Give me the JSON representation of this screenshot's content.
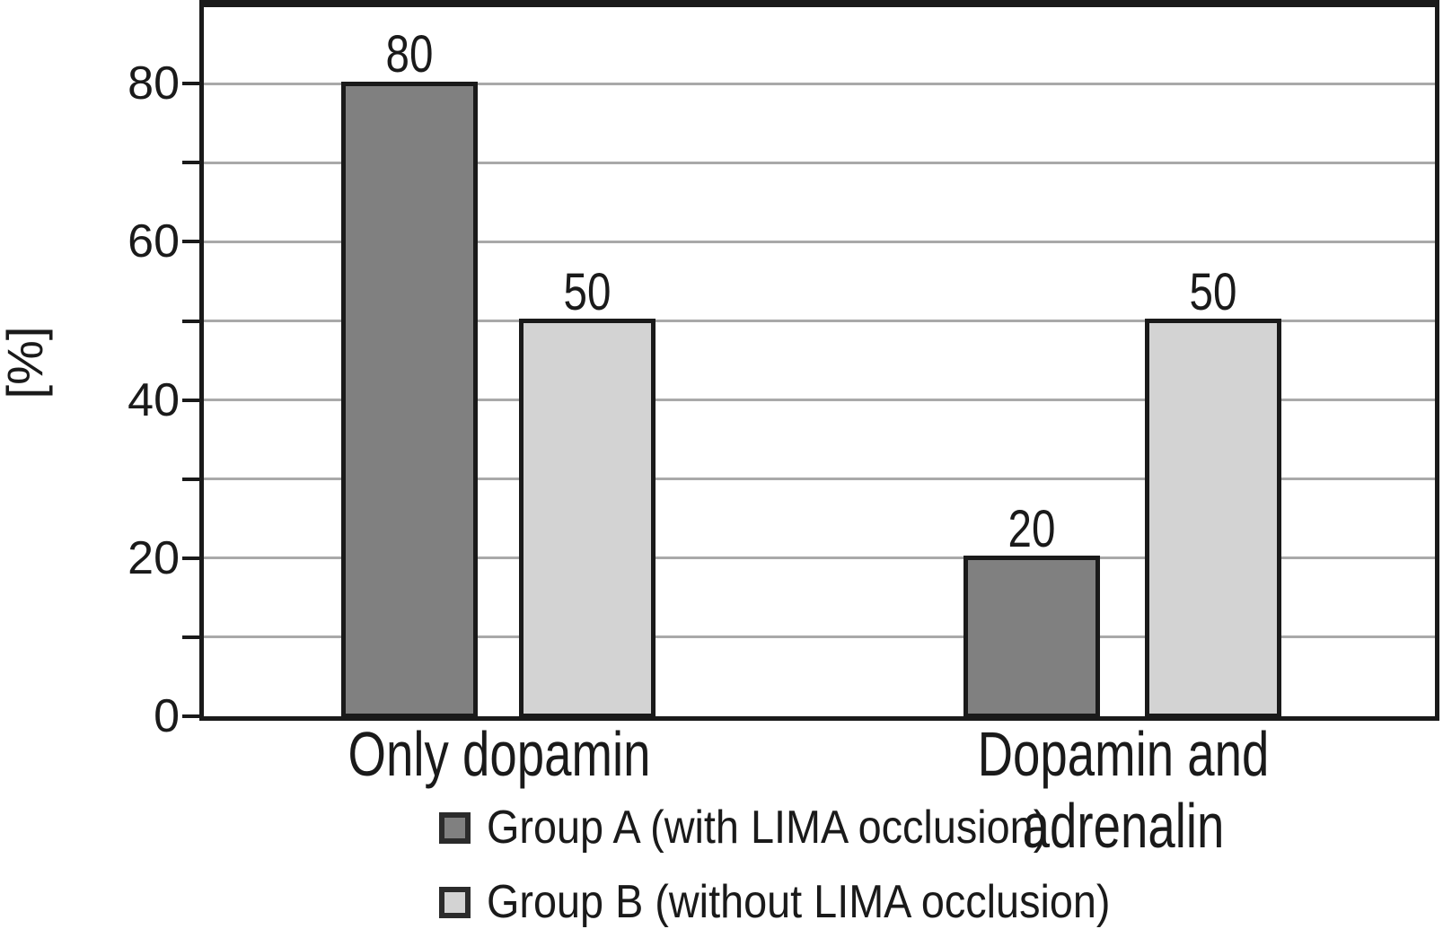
{
  "chart_data": {
    "type": "bar",
    "title": "",
    "categories": [
      "Only dopamin",
      "Dopamin and adrenalin"
    ],
    "series": [
      {
        "name": "Group A (with LIMA occlusion)",
        "values": [
          80,
          20
        ],
        "color": "#808080"
      },
      {
        "name": "Group B (without LIMA occlusion)",
        "values": [
          50,
          50
        ],
        "color": "#d3d3d3"
      }
    ],
    "bar_value_labels": [
      [
        "80",
        "20"
      ],
      [
        "50",
        "50"
      ]
    ],
    "xlabel": "",
    "ylabel": "[%]",
    "ylim": [
      0,
      90
    ],
    "yticks_labeled": [
      0,
      20,
      40,
      60,
      80
    ],
    "grid_step": 10,
    "grid": true,
    "legend_position": "bottom-left",
    "colors": {
      "axis": "#1a1a1a",
      "gridline": "#a9a9a9",
      "background": "#ffffff",
      "text": "#1a1a1a"
    }
  }
}
